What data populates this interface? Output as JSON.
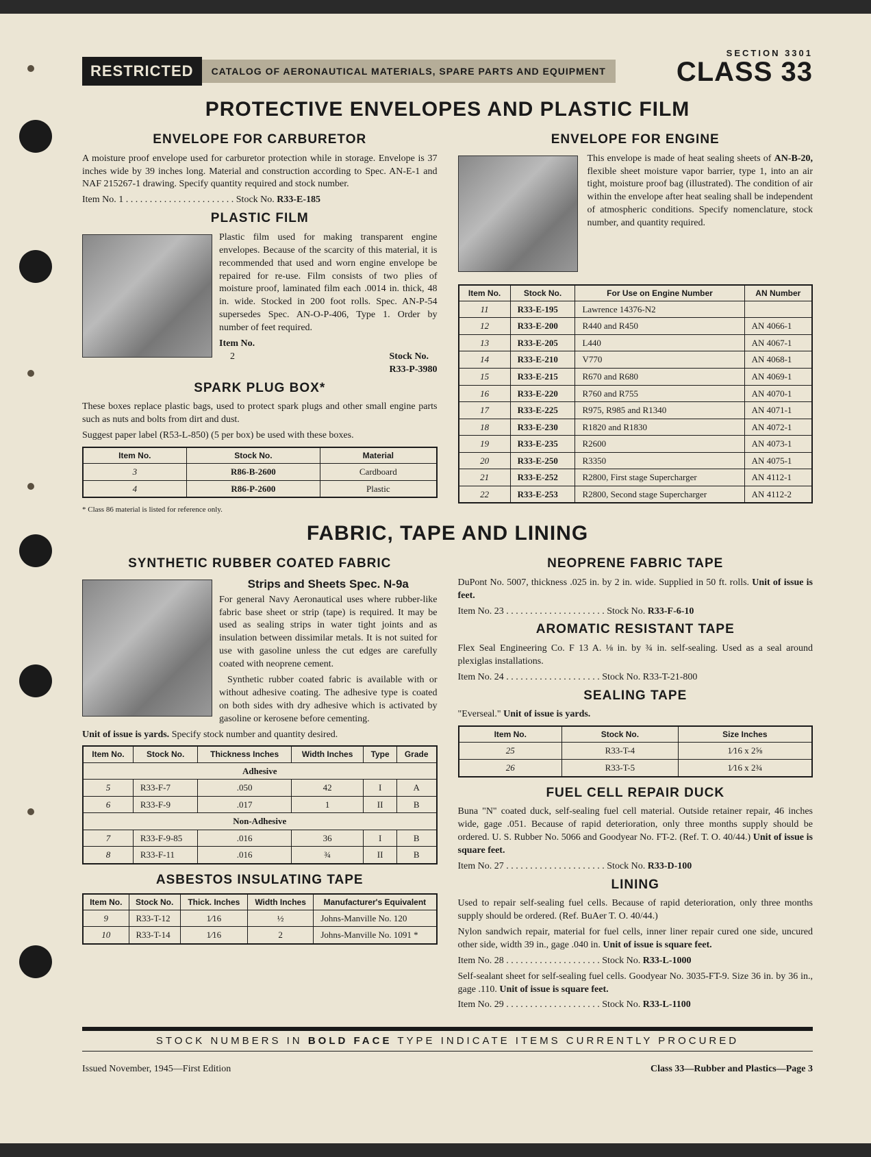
{
  "header": {
    "restricted": "RESTRICTED",
    "catalog": "CATALOG OF AERONAUTICAL MATERIALS, SPARE PARTS AND EQUIPMENT",
    "section": "SECTION 3301",
    "class": "CLASS 33"
  },
  "title1": "PROTECTIVE ENVELOPES AND PLASTIC FILM",
  "carb": {
    "h": "ENVELOPE FOR CARBURETOR",
    "p": "A moisture proof envelope used for carburetor protection while in storage. Envelope is 37 inches wide by 39 inches long. Material and construction according to Spec. AN-E-1 and NAF 215267-1 drawing. Specify quantity required and stock number.",
    "line": "Item No. 1 . . . . . . . . . . . . . . . . . . . . . . . Stock No. ",
    "stock": "R33-E-185"
  },
  "plastic": {
    "h": "PLASTIC FILM",
    "p": "Plastic film used for making transparent engine envelopes. Because of the scarcity of this material, it is recommended that used and worn engine envelope be repaired for re-use. Film consists of two plies of moisture proof, laminated film each .0014 in. thick, 48 in. wide. Stocked in 200 foot rolls. Spec. AN-P-54 supersedes Spec. AN-O-P-406, Type 1. Order by number of feet required.",
    "item_lbl": "Item No.",
    "item_no": "2",
    "stock_lbl": "Stock No.",
    "stock": "R33-P-3980"
  },
  "spark": {
    "h": "SPARK PLUG BOX*",
    "p1": "These boxes replace plastic bags, used to protect spark plugs and other small engine parts such as nuts and bolts from dirt and dust.",
    "p2": "Suggest paper label (R53-L-850) (5 per box) be used with these boxes.",
    "cols": [
      "Item No.",
      "Stock No.",
      "Material"
    ],
    "rows": [
      [
        "3",
        "R86-B-2600",
        "Cardboard"
      ],
      [
        "4",
        "R86-P-2600",
        "Plastic"
      ]
    ],
    "note": "* Class 86 material is listed for reference only."
  },
  "engine": {
    "h": "ENVELOPE FOR ENGINE",
    "p": "This envelope is made of heat sealing sheets of AN-B-20, flexible sheet moisture vapor barrier, type 1, into an air tight, moisture proof bag (illustrated). The condition of air within the envelope after heat sealing shall be independent of atmospheric conditions. Specify nomenclature, stock number, and quantity required.",
    "cols": [
      "Item No.",
      "Stock No.",
      "For Use on Engine Number",
      "AN Number"
    ],
    "rows": [
      [
        "11",
        "R33-E-195",
        "Lawrence 14376-N2",
        ""
      ],
      [
        "12",
        "R33-E-200",
        "R440 and R450",
        "AN 4066-1"
      ],
      [
        "13",
        "R33-E-205",
        "L440",
        "AN 4067-1"
      ],
      [
        "14",
        "R33-E-210",
        "V770",
        "AN 4068-1"
      ],
      [
        "15",
        "R33-E-215",
        "R670 and R680",
        "AN 4069-1"
      ],
      [
        "16",
        "R33-E-220",
        "R760 and R755",
        "AN 4070-1"
      ],
      [
        "17",
        "R33-E-225",
        "R975, R985 and R1340",
        "AN 4071-1"
      ],
      [
        "18",
        "R33-E-230",
        "R1820 and R1830",
        "AN 4072-1"
      ],
      [
        "19",
        "R33-E-235",
        "R2600",
        "AN 4073-1"
      ],
      [
        "20",
        "R33-E-250",
        "R3350",
        "AN 4075-1"
      ],
      [
        "21",
        "R33-E-252",
        "R2800, First stage Supercharger",
        "AN 4112-1"
      ],
      [
        "22",
        "R33-E-253",
        "R2800, Second stage Supercharger",
        "AN 4112-2"
      ]
    ]
  },
  "title2": "FABRIC, TAPE AND LINING",
  "rubber": {
    "h": "SYNTHETIC RUBBER COATED FABRIC",
    "sub": "Strips and Sheets Spec. N-9a",
    "p1": "For general Navy Aeronautical uses where rubber-like fabric base sheet or strip (tape) is required. It may be used as sealing strips in water tight joints and as insulation between dissimilar metals. It is not suited for use with gasoline unless the cut edges are carefully coated with neoprene cement.",
    "p2": "Synthetic rubber coated fabric is available with or without adhesive coating. The adhesive type is coated on both sides with dry adhesive which is activated by gasoline or kerosene before cementing.",
    "p3": "Unit of issue is yards. Specify stock number and quantity desired.",
    "cols": [
      "Item No.",
      "Stock No.",
      "Thickness Inches",
      "Width Inches",
      "Type",
      "Grade"
    ],
    "group1": "Adhesive",
    "rows1": [
      [
        "5",
        "R33-F-7",
        ".050",
        "42",
        "I",
        "A"
      ],
      [
        "6",
        "R33-F-9",
        ".017",
        "1",
        "II",
        "B"
      ]
    ],
    "group2": "Non-Adhesive",
    "rows2": [
      [
        "7",
        "R33-F-9-85",
        ".016",
        "36",
        "I",
        "B"
      ],
      [
        "8",
        "R33-F-11",
        ".016",
        "¾",
        "II",
        "B"
      ]
    ]
  },
  "asbestos": {
    "h": "ASBESTOS INSULATING TAPE",
    "cols": [
      "Item No.",
      "Stock No.",
      "Thick. Inches",
      "Width Inches",
      "Manufacturer's Equivalent"
    ],
    "rows": [
      [
        "9",
        "R33-T-12",
        "1⁄16",
        "½",
        "Johns-Manville No. 120"
      ],
      [
        "10",
        "R33-T-14",
        "1⁄16",
        "2",
        "Johns-Manville No. 1091 *"
      ]
    ]
  },
  "neoprene": {
    "h": "NEOPRENE FABRIC TAPE",
    "p": "DuPont No. 5007, thickness .025 in. by 2 in. wide. Supplied in 50 ft. rolls. Unit of issue is feet.",
    "line": "Item No. 23 . . . . . . . . . . . . . . . . . . . . . Stock No. ",
    "stock": "R33-F-6-10"
  },
  "aromatic": {
    "h": "AROMATIC RESISTANT TAPE",
    "p": "Flex Seal Engineering Co. F 13 A. ⅛ in. by ¾ in. self-sealing. Used as a seal around plexiglas installations.",
    "line": "Item No. 24 . . . . . . . . . . . . . . . . . . . . Stock No. R33-T-21-800"
  },
  "sealing": {
    "h": "SEALING TAPE",
    "p": "\"Everseal.\" Unit of issue is yards.",
    "cols": [
      "Item No.",
      "Stock No.",
      "Size Inches"
    ],
    "rows": [
      [
        "25",
        "R33-T-4",
        "1⁄16 x 2⅝"
      ],
      [
        "26",
        "R33-T-5",
        "1⁄16 x 2¾"
      ]
    ]
  },
  "duck": {
    "h": "FUEL CELL REPAIR DUCK",
    "p": "Buna \"N\" coated duck, self-sealing fuel cell material. Outside retainer repair, 46 inches wide, gage .051. Because of rapid deterioration, only three months supply should be ordered. U. S. Rubber No. 5066 and Goodyear No. FT-2. (Ref. T. O. 40/44.) Unit of issue is square feet.",
    "line": "Item No. 27 . . . . . . . . . . . . . . . . . . . . . Stock No. ",
    "stock": "R33-D-100"
  },
  "lining": {
    "h": "LINING",
    "p1": "Used to repair self-sealing fuel cells. Because of rapid deterioration, only three months supply should be ordered. (Ref. BuAer T. O. 40/44.)",
    "p2": "Nylon sandwich repair, material for fuel cells, inner liner repair cured one side, uncured other side, width 39 in., gage .040 in. Unit of issue is square feet.",
    "line1": "Item No. 28 . . . . . . . . . . . . . . . . . . . . Stock No. ",
    "stock1": "R33-L-1000",
    "p3": "Self-sealant sheet for self-sealing fuel cells. Goodyear No. 3035-FT-9. Size 36 in. by 36 in., gage .110. Unit of issue is square feet.",
    "line2": "Item No. 29 . . . . . . . . . . . . . . . . . . . . Stock No. ",
    "stock2": "R33-L-1100"
  },
  "footer": {
    "bar_pre": "STOCK NUMBERS IN ",
    "bar_bold": "BOLD FACE",
    "bar_post": " TYPE INDICATE ITEMS CURRENTLY PROCURED",
    "issued": "Issued November, 1945—First Edition",
    "page": "Class 33—Rubber and Plastics—Page 3"
  }
}
